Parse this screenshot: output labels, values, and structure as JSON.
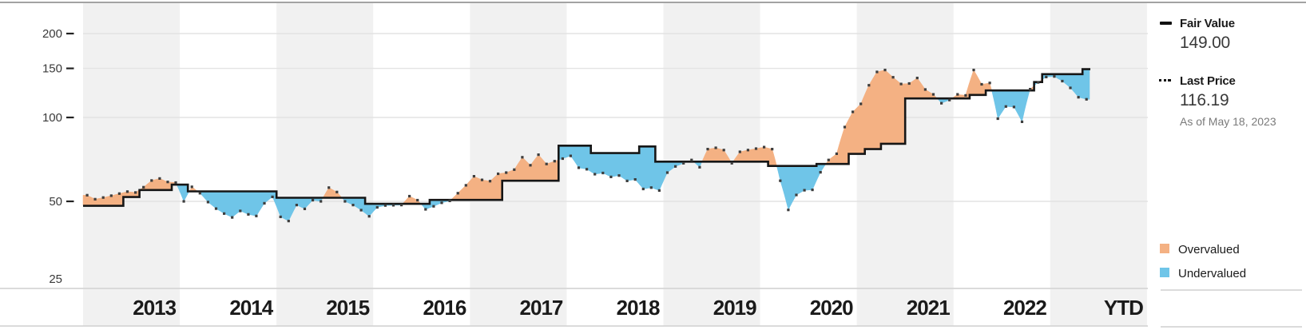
{
  "colors": {
    "overvalued": "#F4B183",
    "undervalued": "#6FC5E8",
    "fair_value_line": "#161616",
    "price_dot": "#3d3d3d",
    "year_stripe": "#f1f1f1",
    "gridline": "#e3e3e3",
    "axis_text": "#3a3a3a",
    "year_text": "#1a1a1a",
    "muted_text": "#7a7a7a",
    "border_top": "#a3a3a3",
    "border_light": "#cfcfcf"
  },
  "legend": {
    "fair_value": {
      "label": "Fair Value",
      "value": "149.00"
    },
    "last_price": {
      "label": "Last Price",
      "value": "116.19",
      "as_of": "As of May 18, 2023"
    },
    "overvalued_label": "Overvalued",
    "undervalued_label": "Undervalued"
  },
  "chart_data": {
    "type": "area",
    "description": "Price versus fair value history. Black step line = fair value estimate; dotted series = monthly price. Orange shading = price above fair value (overvalued); blue shading = price below fair value (undervalued).",
    "x_axis": {
      "labels": [
        "2013",
        "2014",
        "2015",
        "2016",
        "2017",
        "2018",
        "2019",
        "2020",
        "2021",
        "2022",
        "YTD"
      ]
    },
    "y_axis": {
      "scale": "log",
      "ticks": [
        200,
        150,
        100,
        50,
        25
      ]
    },
    "start_month": "2013-01",
    "end_month": "2023-05",
    "fair_value_current": 149.0,
    "last_price_current": 116.19,
    "series": [
      {
        "name": "Fair Value",
        "type": "step-line",
        "steps": [
          {
            "month_index": 0,
            "value": 48.2
          },
          {
            "month_index": 5,
            "value": 51.8
          },
          {
            "month_index": 7,
            "value": 54.9
          },
          {
            "month_index": 11,
            "value": 57.4
          },
          {
            "month_index": 13,
            "value": 54.3
          },
          {
            "month_index": 24,
            "value": 51.5
          },
          {
            "month_index": 35,
            "value": 49.0
          },
          {
            "month_index": 43,
            "value": 50.6
          },
          {
            "month_index": 52,
            "value": 59.3
          },
          {
            "month_index": 59,
            "value": 79.2
          },
          {
            "month_index": 63,
            "value": 74.5
          },
          {
            "month_index": 69,
            "value": 78.7
          },
          {
            "month_index": 71,
            "value": 69.4
          },
          {
            "month_index": 85,
            "value": 67.0
          },
          {
            "month_index": 91,
            "value": 68.1
          },
          {
            "month_index": 95,
            "value": 74.0
          },
          {
            "month_index": 97,
            "value": 77.0
          },
          {
            "month_index": 99,
            "value": 80.5
          },
          {
            "month_index": 102,
            "value": 117.0
          },
          {
            "month_index": 110,
            "value": 120.5
          },
          {
            "month_index": 112,
            "value": 125.0
          },
          {
            "month_index": 118,
            "value": 134.0
          },
          {
            "month_index": 119,
            "value": 143.0
          },
          {
            "month_index": 124,
            "value": 149.0
          }
        ]
      },
      {
        "name": "Last Price",
        "type": "dotted-line",
        "monthly_values": [
          52.6,
          50.9,
          51.6,
          52.4,
          53.3,
          54.2,
          53.8,
          56.2,
          59.4,
          60.4,
          58.7,
          58.4,
          50.0,
          56.4,
          53.5,
          49.7,
          47.1,
          45.2,
          43.8,
          46.2,
          44.9,
          44.3,
          49.2,
          51.9,
          44.0,
          42.5,
          48.5,
          47.0,
          50.5,
          50.0,
          56.0,
          54.0,
          50.0,
          48.5,
          46.5,
          44.2,
          47.6,
          48.3,
          48.4,
          48.5,
          52.2,
          50.5,
          46.8,
          48.0,
          49.4,
          50.2,
          53.5,
          57.1,
          61.5,
          59.7,
          59.1,
          62.8,
          63.4,
          65.0,
          72.0,
          67.4,
          73.5,
          68.1,
          69.7,
          71.2,
          72.8,
          66.0,
          65.2,
          62.6,
          63.2,
          61.2,
          61.9,
          59.2,
          59.9,
          55.4,
          56.0,
          54.7,
          63.4,
          66.7,
          68.5,
          70.4,
          66.3,
          77.0,
          77.8,
          76.4,
          68.5,
          75.3,
          76.4,
          77.3,
          78.3,
          77.0,
          59.3,
          46.6,
          52.7,
          54.8,
          55.0,
          63.6,
          70.4,
          74.1,
          92.4,
          104.7,
          111.9,
          130.5,
          145.7,
          148.0,
          139.4,
          131.9,
          132.4,
          138.6,
          126.0,
          121.0,
          112.5,
          115.5,
          121.0,
          120.0,
          148.0,
          131.5,
          133.0,
          99.0,
          109.5,
          109.0,
          96.5,
          126.3,
          133.6,
          139.7,
          140.3,
          135.0,
          127.7,
          118.2,
          116.19
        ]
      }
    ]
  }
}
